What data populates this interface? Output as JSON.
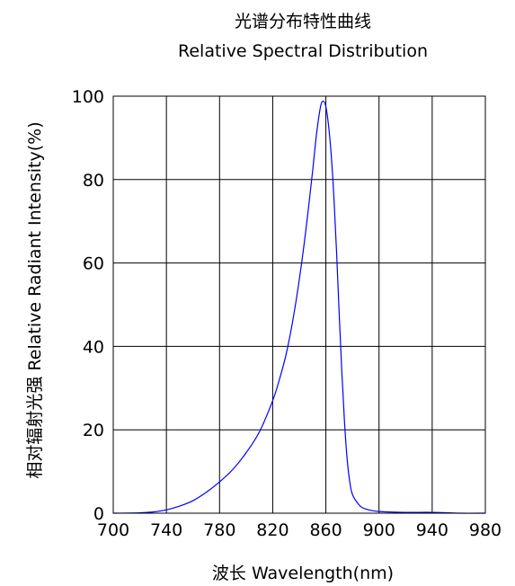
{
  "chart_data": {
    "type": "line",
    "title": "光谱分布特性曲线",
    "subtitle": "Relative Spectral Distribution",
    "xlabel": "波长 Wavelength(nm)",
    "ylabel": "相对辐射光强 Relative Radiant Intensity(%)",
    "xlim": [
      700,
      980
    ],
    "ylim": [
      0,
      100
    ],
    "xticks": [
      700,
      740,
      780,
      820,
      860,
      900,
      940,
      980
    ],
    "yticks": [
      0,
      20,
      40,
      60,
      80,
      100
    ],
    "grid": true,
    "line_color": "#0000ff",
    "series": [
      {
        "x": [
          700,
          720,
          730,
          740,
          750,
          760,
          770,
          780,
          790,
          800,
          810,
          820,
          825,
          830,
          835,
          840,
          845,
          850,
          853,
          856,
          858,
          860,
          862,
          864,
          866,
          868,
          870,
          872,
          874,
          876,
          878,
          880,
          885,
          890,
          900,
          920,
          940,
          960,
          980
        ],
        "y": [
          0,
          0.1,
          0.3,
          0.8,
          1.7,
          3.0,
          5.0,
          7.5,
          10.5,
          14.5,
          19.5,
          27.0,
          32.0,
          38.0,
          46.0,
          56.0,
          68.0,
          82.0,
          91.0,
          97.5,
          98.8,
          97.5,
          93.0,
          86.0,
          76.0,
          63.0,
          48.0,
          34.0,
          22.0,
          13.0,
          7.5,
          4.5,
          2.0,
          1.0,
          0.4,
          0.2,
          0.2,
          0.0,
          0.0
        ]
      }
    ]
  }
}
